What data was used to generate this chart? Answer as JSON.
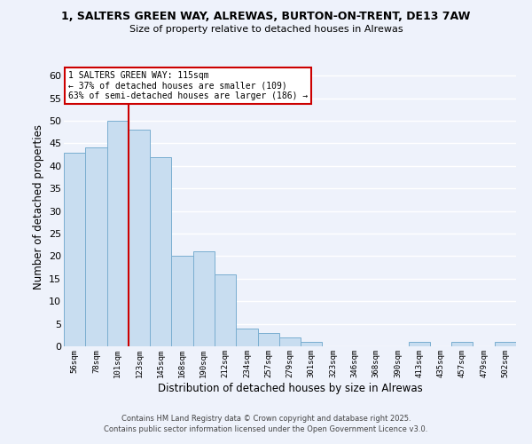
{
  "title_line1": "1, SALTERS GREEN WAY, ALREWAS, BURTON-ON-TRENT, DE13 7AW",
  "title_line2": "Size of property relative to detached houses in Alrewas",
  "xlabel": "Distribution of detached houses by size in Alrewas",
  "ylabel": "Number of detached properties",
  "categories": [
    "56sqm",
    "78sqm",
    "101sqm",
    "123sqm",
    "145sqm",
    "168sqm",
    "190sqm",
    "212sqm",
    "234sqm",
    "257sqm",
    "279sqm",
    "301sqm",
    "323sqm",
    "346sqm",
    "368sqm",
    "390sqm",
    "413sqm",
    "435sqm",
    "457sqm",
    "479sqm",
    "502sqm"
  ],
  "values": [
    43,
    44,
    50,
    48,
    42,
    20,
    21,
    16,
    4,
    3,
    2,
    1,
    0,
    0,
    0,
    0,
    1,
    0,
    1,
    0,
    1
  ],
  "bar_color": "#c8ddf0",
  "bar_edge_color": "#7aaed0",
  "background_color": "#eef2fb",
  "grid_color": "#ffffff",
  "vline_x": 2.5,
  "vline_color": "#cc0000",
  "annotation_text": "1 SALTERS GREEN WAY: 115sqm\n← 37% of detached houses are smaller (109)\n63% of semi-detached houses are larger (186) →",
  "annotation_box_color": "#ffffff",
  "annotation_box_edge": "#cc0000",
  "ylim": [
    0,
    62
  ],
  "yticks": [
    0,
    5,
    10,
    15,
    20,
    25,
    30,
    35,
    40,
    45,
    50,
    55,
    60
  ],
  "footer_line1": "Contains HM Land Registry data © Crown copyright and database right 2025.",
  "footer_line2": "Contains public sector information licensed under the Open Government Licence v3.0."
}
